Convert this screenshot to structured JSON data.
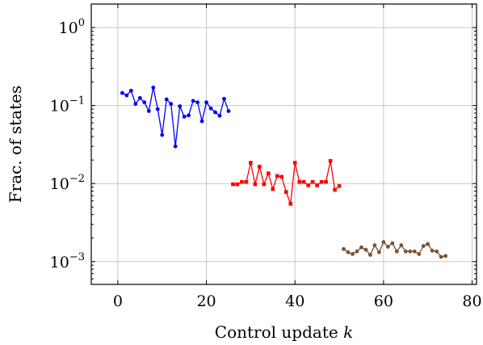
{
  "chart_data": {
    "type": "line",
    "title": "",
    "xlabel_prefix": "Control update ",
    "xlabel_var": "k",
    "ylabel": "Frac. of states",
    "xlim": [
      -6,
      81
    ],
    "ylim": [
      0.00051,
      2.0
    ],
    "yscale": "log",
    "grid": true,
    "xticks": [
      0,
      20,
      40,
      60,
      80
    ],
    "yticks": [
      {
        "value": 1,
        "base": "10",
        "exp": "0"
      },
      {
        "value": 0.1,
        "base": "10",
        "exp": "−1"
      },
      {
        "value": 0.01,
        "base": "10",
        "exp": "−2"
      },
      {
        "value": 0.001,
        "base": "10",
        "exp": "−3"
      }
    ],
    "series": [
      {
        "color": "#0000ff",
        "marker": "circle",
        "x": [
          1,
          2,
          3,
          4,
          5,
          6,
          7,
          8,
          9,
          10,
          11,
          12,
          13,
          14,
          15,
          16,
          17,
          18,
          19,
          20,
          21,
          22,
          23,
          24,
          25
        ],
        "y": [
          0.145,
          0.135,
          0.155,
          0.105,
          0.125,
          0.11,
          0.085,
          0.17,
          0.09,
          0.042,
          0.12,
          0.105,
          0.03,
          0.098,
          0.072,
          0.075,
          0.115,
          0.11,
          0.063,
          0.11,
          0.092,
          0.082,
          0.074,
          0.122,
          0.085
        ]
      },
      {
        "color": "#ff0000",
        "marker": "square",
        "x": [
          26,
          27,
          28,
          29,
          30,
          31,
          32,
          33,
          34,
          35,
          36,
          37,
          38,
          39,
          40,
          41,
          42,
          43,
          44,
          45,
          46,
          47,
          48,
          49,
          50
        ],
        "y": [
          0.0098,
          0.0098,
          0.0105,
          0.0105,
          0.0185,
          0.0098,
          0.0165,
          0.0098,
          0.0135,
          0.0085,
          0.0125,
          0.0122,
          0.0078,
          0.0055,
          0.0185,
          0.0105,
          0.0105,
          0.0095,
          0.0105,
          0.0095,
          0.0105,
          0.0105,
          0.0195,
          0.0083,
          0.0093
        ]
      },
      {
        "color": "#7a5230",
        "marker": "circle",
        "x": [
          51,
          52,
          53,
          54,
          55,
          56,
          57,
          58,
          59,
          60,
          61,
          62,
          63,
          64,
          65,
          66,
          67,
          68,
          69,
          70,
          71,
          72,
          73,
          74
        ],
        "y": [
          0.00145,
          0.00132,
          0.00125,
          0.00135,
          0.00152,
          0.00142,
          0.00122,
          0.00162,
          0.00132,
          0.00178,
          0.00155,
          0.00172,
          0.00135,
          0.00162,
          0.00135,
          0.00135,
          0.00135,
          0.00125,
          0.00158,
          0.00168,
          0.00138,
          0.00135,
          0.00115,
          0.00118
        ]
      }
    ]
  }
}
